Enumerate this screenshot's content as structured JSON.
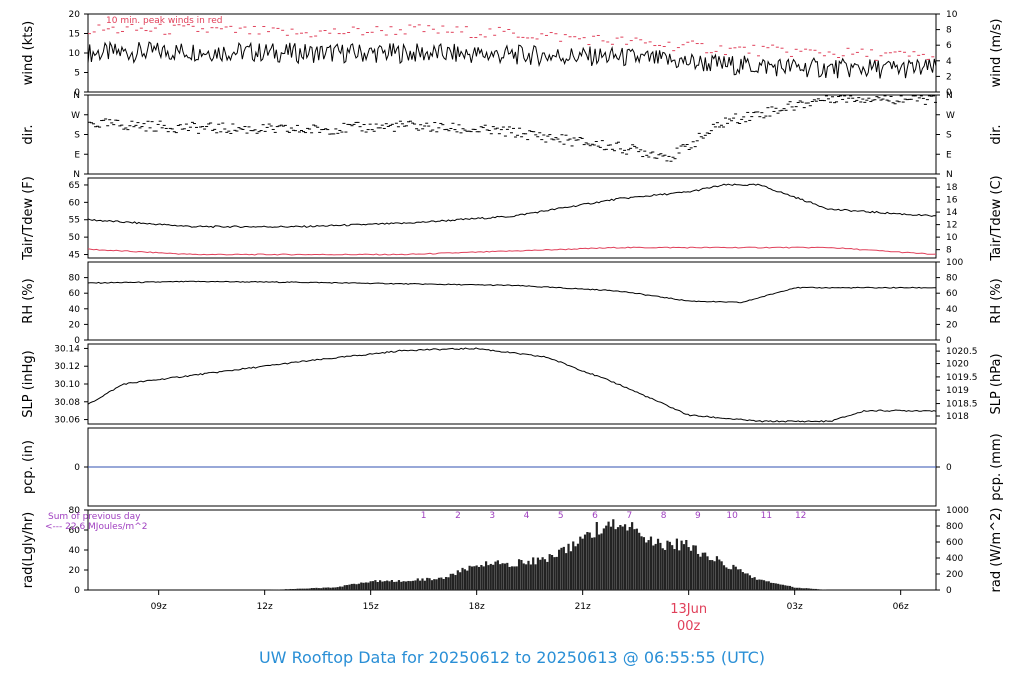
{
  "title": "UW Rooftop Data for 20250612  to  20250613 @ 06:55:55  (UTC)",
  "colors": {
    "line": "#000000",
    "dew": "#e0405a",
    "precip": "#3050b0",
    "annot": "#a040c0",
    "peak": "#e0405a",
    "title": "#2a8fd6",
    "date": "#e0405a"
  },
  "chart_data": {
    "type": "line",
    "x_ticks": [
      "09z",
      "12z",
      "15z",
      "18z",
      "21z",
      "00z",
      "03z",
      "06z"
    ],
    "date_label": "13Jun",
    "panels": [
      {
        "key": "wind",
        "left_label": "wind (kts)",
        "right_label": "wind (m/s)",
        "left_ticks": [
          "20",
          "15",
          "10",
          "5",
          "0"
        ],
        "right_ticks": [
          "10",
          "8",
          "6",
          "4",
          "2",
          "0"
        ],
        "annotation": "10 min. peak winds in red",
        "series": [
          {
            "name": "wind",
            "x": [
              0,
              3,
              6,
              9,
              12,
              15,
              18,
              21,
              24
            ],
            "y": [
              10,
              10.5,
              10,
              10,
              9.5,
              9,
              7,
              6,
              6
            ]
          },
          {
            "name": "peak",
            "x": [
              0,
              3,
              6,
              9,
              12,
              15,
              18,
              21,
              24
            ],
            "y": [
              16,
              16,
              15,
              16,
              15,
              13,
              11,
              10,
              9
            ]
          }
        ]
      },
      {
        "key": "dir",
        "left_label": "dir.",
        "right_label": "dir.",
        "left_ticks": [
          "N",
          "W",
          "S",
          "E",
          "N"
        ],
        "right_ticks": [
          "N",
          "W",
          "S",
          "E",
          "N"
        ],
        "series": [
          {
            "name": "dir",
            "x": [
              0,
              3,
              6,
              9,
              12,
              15,
              16.5,
              18,
              21,
              24
            ],
            "y": [
              230,
              210,
              200,
              220,
              190,
              120,
              80,
              240,
              350,
              340
            ]
          }
        ]
      },
      {
        "key": "temp",
        "left_label": "Tair/Tdew (F)",
        "right_label": "Tair/Tdew (C)",
        "left_ticks": [
          "65",
          "60",
          "55",
          "50",
          "45"
        ],
        "right_ticks": [
          "18",
          "16",
          "14",
          "12",
          "10",
          "8"
        ],
        "series": [
          {
            "name": "Tair",
            "x": [
              0,
              3,
              6,
              9,
              12,
              15,
              17,
              18,
              19,
              21,
              24
            ],
            "y": [
              55,
              53,
              53,
              54,
              56,
              61,
              63,
              65,
              65,
              58,
              56
            ]
          },
          {
            "name": "Tdew",
            "x": [
              0,
              3,
              6,
              9,
              12,
              15,
              18,
              21,
              24
            ],
            "y": [
              46.5,
              45,
              45,
              45,
              46,
              47,
              47,
              47,
              45
            ]
          }
        ]
      },
      {
        "key": "rh",
        "left_label": "RH (%)",
        "right_label": "RH (%)",
        "left_ticks": [
          "80",
          "60",
          "40",
          "20",
          "0"
        ],
        "right_ticks": [
          "100",
          "80",
          "60",
          "40",
          "20",
          "0"
        ],
        "series": [
          {
            "name": "RH",
            "x": [
              0,
              3,
              6,
              9,
              12,
              15,
              17,
              18.5,
              20,
              24
            ],
            "y": [
              73,
              75,
              74,
              72,
              70,
              63,
              50,
              48,
              67,
              67
            ]
          }
        ]
      },
      {
        "key": "slp",
        "left_label": "SLP (inHg)",
        "right_label": "SLP (hPa)",
        "left_ticks": [
          "30.14",
          "30.12",
          "30.10",
          "30.08",
          "30.06"
        ],
        "right_ticks": [
          "1020.5",
          "1020",
          "1019.5",
          "1019",
          "1018.5",
          "1018"
        ],
        "series": [
          {
            "name": "SLP",
            "x": [
              0,
              1,
              3,
              6,
              9,
              11,
              13,
              15,
              17,
              19,
              21,
              22,
              24
            ],
            "y": [
              30.077,
              30.1,
              30.11,
              30.125,
              30.138,
              30.14,
              30.13,
              30.1,
              30.065,
              30.058,
              30.058,
              30.07,
              30.07
            ]
          }
        ]
      },
      {
        "key": "pcp",
        "left_label": "pcp. (in)",
        "right_label": "pcp. (mm)",
        "left_ticks": [
          "0"
        ],
        "right_ticks": [
          "0"
        ],
        "series": [
          {
            "name": "pcp",
            "x": [
              0,
              24
            ],
            "y": [
              0,
              0
            ]
          }
        ]
      },
      {
        "key": "rad",
        "left_label": "rad(Lgly/hr)",
        "right_label": "rad (W/m^2)",
        "left_ticks": [
          "80",
          "60",
          "40",
          "20",
          "0"
        ],
        "right_ticks": [
          "1000",
          "800",
          "600",
          "400",
          "200",
          "0"
        ],
        "annotation_lines": [
          "Sum of previous day",
          "<--- 22.6 MJoules/m^2"
        ],
        "hour_marks": [
          "1",
          "2",
          "3",
          "4",
          "5",
          "6",
          "7",
          "8",
          "9",
          "10",
          "11",
          "12"
        ],
        "series": [
          {
            "name": "rad",
            "x": [
              5,
              7,
              8,
              9,
              10,
              11,
              12,
              13,
              14,
              15,
              16,
              17,
              18,
              19,
              20,
              21
            ],
            "y": [
              0,
              3,
              10,
              11,
              13,
              30,
              30,
              35,
              60,
              80,
              55,
              50,
              30,
              12,
              3,
              0
            ]
          }
        ]
      }
    ]
  }
}
